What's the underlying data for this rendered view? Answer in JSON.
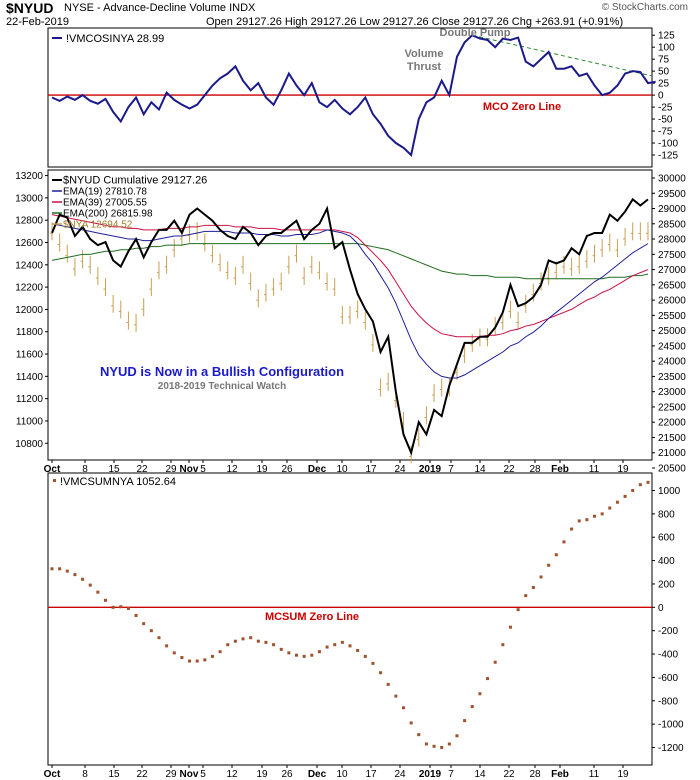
{
  "header": {
    "symbol": "$NYUD",
    "exchange": "NYSE - Advance-Decline Volume INDX",
    "date": "22-Feb-2019",
    "ohlc": "Open 29127.26  High 29127.26  Low 29127.26  Close 29127.26  Chg +263.91 (+0.91%)",
    "brand": "© StockCharts.com"
  },
  "annotations": {
    "double_pump": "Double Pump",
    "volume_thrust": "Volume\nThrust",
    "mco_zero": "MCO Zero Line",
    "bullish": "NYUD is Now in a Bullish Configuration",
    "watch": "2018-2019 Technical Watch",
    "mcsum_zero": "MCSUM Zero Line"
  },
  "colors": {
    "mco_line": "#1a1a8c",
    "zero_line": "#cc0000",
    "ema19": "#1f1f99",
    "ema39": "#cc1144",
    "ema200": "#1f6e1f",
    "nya": "#c8a050",
    "cumulative": "#000000",
    "mcsum": "#a0522d",
    "trend": "#2e8b2e"
  },
  "xaxis": {
    "labels": [
      "Oct",
      "8",
      "15",
      "22",
      "29",
      "Nov",
      "5",
      "12",
      "19",
      "26",
      "Dec",
      "10",
      "17",
      "24",
      "2019",
      "7",
      "14",
      "22",
      "28",
      "Feb",
      "11",
      "19"
    ]
  },
  "chart_data": [
    {
      "type": "line",
      "legend": "!VMCOSINYA 28.99",
      "ylim": [
        -150,
        140
      ],
      "yticks": [
        125,
        100,
        75,
        50,
        25,
        0,
        -25,
        -50,
        -75,
        -100,
        -125
      ],
      "series": [
        {
          "name": "!VMCOSINYA",
          "values": [
            -5,
            -12,
            -3,
            -10,
            0,
            -12,
            -18,
            -8,
            -35,
            -55,
            -25,
            -5,
            -40,
            -15,
            -30,
            5,
            -10,
            -20,
            -28,
            -20,
            0,
            20,
            35,
            45,
            60,
            30,
            10,
            25,
            -5,
            -20,
            10,
            45,
            20,
            0,
            25,
            -15,
            -25,
            -10,
            -28,
            -40,
            -25,
            -5,
            -40,
            -60,
            -85,
            -100,
            -110,
            -125,
            -50,
            -15,
            -5,
            30,
            0,
            80,
            110,
            125,
            118,
            115,
            100,
            118,
            115,
            120,
            70,
            60,
            75,
            90,
            55,
            55,
            60,
            40,
            45,
            20,
            0,
            5,
            20,
            45,
            50,
            48,
            25,
            28
          ]
        }
      ],
      "trend_line": [
        125,
        40
      ]
    },
    {
      "type": "line",
      "legend": [
        "$NYUD Cumulative 29127.26",
        "EMA(19) 27810.78",
        "EMA(39) 27005.55",
        "EMA(200) 26815.98",
        "$NYA 12694.52"
      ],
      "ylim_right": [
        20500,
        30000
      ],
      "yticks_right": [
        30000,
        29500,
        29000,
        28500,
        28000,
        27500,
        27000,
        26500,
        26000,
        25500,
        25000,
        24500,
        24000,
        23500,
        23000,
        22500,
        22000,
        21500,
        21000,
        20500
      ],
      "ylim_left": [
        10650,
        13250
      ],
      "yticks_left": [
        13200,
        13000,
        12800,
        12600,
        12400,
        12200,
        12000,
        11800,
        11600,
        11400,
        11200,
        11000,
        10800
      ],
      "series": [
        {
          "name": "$NYUD Cumulative",
          "values": [
            28200,
            28800,
            28700,
            28100,
            28400,
            28000,
            27800,
            27900,
            27300,
            27100,
            27600,
            28000,
            27400,
            27900,
            28300,
            28300,
            28600,
            28200,
            28800,
            29000,
            28800,
            28600,
            28300,
            28100,
            28000,
            28400,
            28200,
            27800,
            28100,
            28200,
            28200,
            28400,
            28600,
            28000,
            28300,
            28500,
            29000,
            27700,
            27900,
            27000,
            26200,
            25700,
            25300,
            24300,
            24800,
            23000,
            21600,
            21000,
            22000,
            21600,
            22400,
            22200,
            23200,
            23900,
            24600,
            24600,
            24800,
            24800,
            25100,
            25600,
            26500,
            25800,
            25900,
            26100,
            26500,
            27300,
            27200,
            27300,
            27700,
            27500,
            28100,
            28200,
            28200,
            28800,
            28600,
            28900,
            29300,
            29100,
            29300
          ]
        },
        {
          "name": "EMA(19)",
          "values": [
            28500,
            28450,
            28400,
            28350,
            28300,
            28250,
            28200,
            28150,
            28100,
            28050,
            28000,
            28000,
            27950,
            27950,
            28000,
            28050,
            28100,
            28100,
            28150,
            28200,
            28250,
            28250,
            28250,
            28250,
            28200,
            28200,
            28200,
            28150,
            28150,
            28150,
            28100,
            28100,
            28150,
            28150,
            28150,
            28200,
            28300,
            28250,
            28200,
            28100,
            27850,
            27500,
            27200,
            26800,
            26400,
            25900,
            25300,
            24700,
            24200,
            23900,
            23650,
            23500,
            23450,
            23450,
            23550,
            23700,
            23850,
            24000,
            24150,
            24300,
            24500,
            24600,
            24800,
            24950,
            25150,
            25400,
            25600,
            25800,
            26000,
            26200,
            26400,
            26600,
            26750,
            26950,
            27150,
            27350,
            27550,
            27700,
            27850
          ]
        },
        {
          "name": "EMA(39)",
          "values": [
            28800,
            28750,
            28700,
            28650,
            28600,
            28550,
            28500,
            28450,
            28400,
            28400,
            28350,
            28350,
            28300,
            28300,
            28300,
            28350,
            28350,
            28350,
            28400,
            28400,
            28450,
            28450,
            28450,
            28450,
            28400,
            28400,
            28400,
            28350,
            28350,
            28350,
            28300,
            28300,
            28300,
            28300,
            28300,
            28300,
            28300,
            28300,
            28250,
            28200,
            28050,
            27800,
            27550,
            27300,
            27000,
            26600,
            26200,
            25800,
            25500,
            25250,
            25050,
            24900,
            24850,
            24800,
            24800,
            24800,
            24800,
            24850,
            24850,
            24900,
            25000,
            25050,
            25150,
            25200,
            25300,
            25400,
            25500,
            25600,
            25700,
            25850,
            26000,
            26100,
            26250,
            26350,
            26500,
            26650,
            26800,
            26900,
            27000
          ]
        },
        {
          "name": "EMA(200)",
          "values": [
            27300,
            27350,
            27400,
            27450,
            27500,
            27500,
            27550,
            27600,
            27600,
            27650,
            27650,
            27700,
            27700,
            27750,
            27750,
            27800,
            27800,
            27800,
            27850,
            27850,
            27850,
            27850,
            27850,
            27850,
            27850,
            27850,
            27850,
            27850,
            27850,
            27850,
            27850,
            27850,
            27850,
            27850,
            27850,
            27850,
            27850,
            27850,
            27850,
            27850,
            27850,
            27800,
            27750,
            27700,
            27650,
            27550,
            27450,
            27350,
            27250,
            27150,
            27050,
            26950,
            26900,
            26850,
            26850,
            26800,
            26800,
            26800,
            26750,
            26750,
            26750,
            26750,
            26700,
            26700,
            26700,
            26700,
            26700,
            26700,
            26700,
            26700,
            26700,
            26700,
            26700,
            26750,
            26750,
            26750,
            26800,
            26800,
            26850
          ]
        },
        {
          "name": "$NYA",
          "values": [
            12700,
            12600,
            12500,
            12380,
            12450,
            12400,
            12300,
            12200,
            12050,
            12000,
            11900,
            11880,
            12020,
            12200,
            12350,
            12400,
            12550,
            12650,
            12680,
            12700,
            12600,
            12500,
            12420,
            12350,
            12300,
            12400,
            12250,
            12100,
            12150,
            12200,
            12250,
            12400,
            12500,
            12300,
            12400,
            12350,
            12250,
            12200,
            11950,
            11950,
            12000,
            11900,
            11700,
            11300,
            11350,
            11200,
            11000,
            10700,
            10850,
            11050,
            11250,
            11300,
            11300,
            11450,
            11600,
            11700,
            11750,
            11750,
            11850,
            11900,
            12000,
            11900,
            12050,
            12150,
            12250,
            12300,
            12350,
            12400,
            12380,
            12400,
            12450,
            12500,
            12550,
            12600,
            12550,
            12650,
            12700,
            12700,
            12700
          ]
        }
      ]
    },
    {
      "type": "scatter",
      "legend": "!VMCSUMNYA 1052.64",
      "ylim": [
        -1350,
        1150
      ],
      "yticks": [
        1000,
        800,
        600,
        400,
        200,
        0,
        -200,
        -400,
        -600,
        -800,
        -1000,
        -1200
      ],
      "series": [
        {
          "name": "!VMCSUMNYA",
          "values": [
            330,
            330,
            310,
            280,
            240,
            190,
            130,
            60,
            0,
            5,
            -10,
            -70,
            -140,
            -200,
            -260,
            -330,
            -390,
            -430,
            -460,
            -460,
            -450,
            -420,
            -380,
            -320,
            -290,
            -270,
            -260,
            -290,
            -300,
            -320,
            -360,
            -390,
            -410,
            -420,
            -410,
            -380,
            -340,
            -320,
            -300,
            -330,
            -370,
            -420,
            -480,
            -560,
            -660,
            -760,
            -860,
            -990,
            -1090,
            -1170,
            -1190,
            -1200,
            -1170,
            -1100,
            -970,
            -850,
            -740,
            -610,
            -470,
            -320,
            -170,
            -20,
            100,
            170,
            260,
            360,
            450,
            560,
            670,
            740,
            750,
            780,
            800,
            850,
            900,
            950,
            1000,
            1050,
            1070
          ]
        }
      ]
    }
  ]
}
